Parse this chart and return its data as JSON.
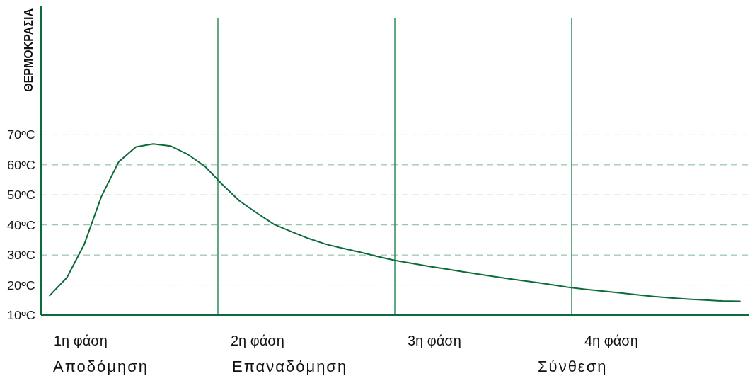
{
  "chart_data": {
    "type": "line",
    "ylabel": "ΘΕΡΜΟΚΡΑΣΙΑ",
    "categories": [
      null,
      null,
      null,
      null,
      null,
      null,
      null,
      null,
      null,
      null,
      null,
      null,
      null,
      null,
      null,
      null,
      null,
      null,
      null,
      null,
      null,
      null,
      null,
      null,
      null,
      null,
      null,
      null,
      null,
      null,
      null,
      null,
      null,
      null,
      null,
      null,
      null,
      null,
      null,
      null,
      null
    ],
    "series": [
      {
        "color": "#0b6b3a",
        "values": [
          16.5,
          22.5,
          33.5,
          49.5,
          61,
          66,
          67,
          66.3,
          63.5,
          59.5,
          53.5,
          48,
          44,
          40.2,
          37.8,
          35.5,
          33.6,
          32.2,
          30.9,
          29.5,
          28.2,
          27.2,
          26.2,
          25.3,
          24.4,
          23.5,
          22.6,
          21.8,
          21,
          20.2,
          19.3,
          18.6,
          18,
          17.4,
          16.8,
          16.2,
          15.7,
          15.3,
          15,
          14.7,
          14.6
        ]
      }
    ],
    "ylim": [
      10,
      113
    ],
    "yticks": [
      {
        "value": 10,
        "label": "10ºC"
      },
      {
        "value": 20,
        "label": "20ºC"
      },
      {
        "value": 30,
        "label": "30ºC"
      },
      {
        "value": 40,
        "label": "40ºC"
      },
      {
        "value": 50,
        "label": "50ºC"
      },
      {
        "value": 60,
        "label": "60ºC"
      },
      {
        "value": 70,
        "label": "70ºC"
      }
    ],
    "tick_labels": "y",
    "grid": "y",
    "ref_lines": [
      {
        "axis": "x",
        "label": "1η φάση",
        "color": "#0b6b3a"
      },
      {
        "axis": "x",
        "label": "2η φάση",
        "color": "#2e8b57"
      },
      {
        "axis": "x",
        "label": "3η φάση",
        "color": "#2e8b57"
      },
      {
        "axis": "x",
        "label": "4η φάση",
        "color": "#2e8b57"
      }
    ],
    "annotations": [
      "Αποδόμηση",
      "Επαναδόμηση",
      "Σύνθεση"
    ]
  }
}
